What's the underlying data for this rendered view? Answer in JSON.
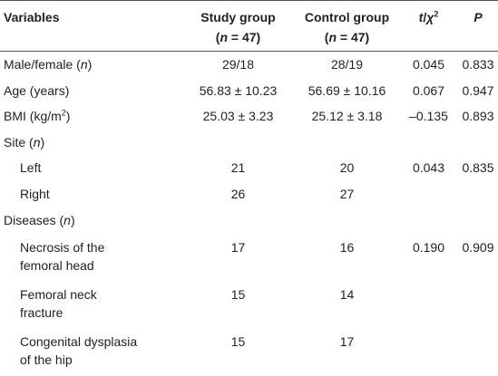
{
  "table": {
    "header": [
      [
        [
          "Variables"
        ]
      ],
      [
        [
          "Study group"
        ],
        [
          "(",
          {
            "text": "n",
            "style": "italic"
          },
          " = 47)"
        ]
      ],
      [
        [
          "Control group"
        ],
        [
          "(",
          {
            "text": "n",
            "style": "italic"
          },
          " = 47)"
        ]
      ],
      [
        [
          {
            "text": "t",
            "style": "italic"
          },
          "/",
          {
            "text": "χ",
            "style": "italic"
          },
          {
            "text": "2",
            "style": "sup"
          }
        ]
      ],
      [
        [
          {
            "text": "P",
            "style": "italic"
          }
        ]
      ]
    ],
    "groups": [
      {
        "label": [
          [
            "Male/female (",
            {
              "text": "n",
              "style": "italic"
            },
            ")"
          ]
        ],
        "cells": [
          "29/18",
          "28/19",
          "0.045",
          "0.833"
        ]
      },
      {
        "label": [
          [
            "Age (years)"
          ]
        ],
        "cells": [
          "56.83 ± 10.23",
          "56.69 ± 10.16",
          "0.067",
          "0.947"
        ]
      },
      {
        "label": [
          [
            "BMI (kg/m",
            {
              "text": "2",
              "style": "sup"
            },
            ")"
          ]
        ],
        "cells": [
          "25.03 ± 3.23",
          "25.12 ± 3.18",
          "–0.135",
          "0.893"
        ]
      },
      {
        "label": [
          [
            "Site (",
            {
              "text": "n",
              "style": "italic"
            },
            ")"
          ]
        ],
        "rows": [
          {
            "label": [
              [
                "Left"
              ]
            ],
            "cells": [
              "21",
              "20",
              "0.043",
              "0.835"
            ]
          },
          {
            "label": [
              [
                "Right"
              ]
            ],
            "cells": [
              "26",
              "27"
            ]
          }
        ]
      },
      {
        "label": [
          [
            "Diseases (",
            {
              "text": "n",
              "style": "italic"
            },
            ")"
          ]
        ],
        "rows": [
          {
            "label": [
              [
                "Necrosis of the"
              ],
              [
                "femoral head"
              ]
            ],
            "cells": [
              "17",
              "16",
              "0.190",
              "0.909"
            ]
          },
          {
            "label": [
              [
                "Femoral neck"
              ],
              [
                "fracture"
              ]
            ],
            "cells": [
              "15",
              "14"
            ]
          },
          {
            "label": [
              [
                "Congenital dysplasia"
              ],
              [
                "of the hip"
              ]
            ],
            "cells": [
              "15",
              "17"
            ]
          }
        ]
      }
    ]
  }
}
